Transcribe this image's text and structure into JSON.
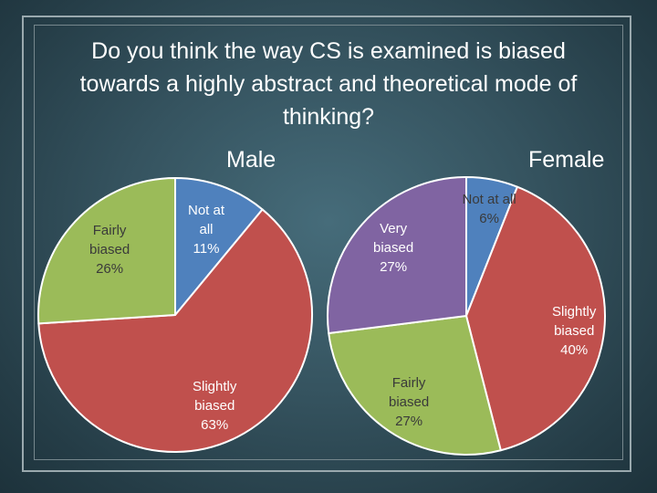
{
  "title": "Do you think the way CS is examined is biased towards a highly abstract and theoretical mode of thinking?",
  "chart_data": [
    {
      "type": "pie",
      "title": "Male",
      "slices": [
        {
          "label_lines": [
            "Not at",
            "all",
            "11%"
          ],
          "value": 11,
          "color": "#4f81bd",
          "text_color": "#ffffff"
        },
        {
          "label_lines": [
            "Slightly",
            "biased",
            "63%"
          ],
          "value": 63,
          "color": "#c0504d",
          "text_color": "#ffffff"
        },
        {
          "label_lines": [
            "Fairly",
            "biased",
            "26%"
          ],
          "value": 26,
          "color": "#9bbb59",
          "text_color": "#3a3a3a"
        }
      ]
    },
    {
      "type": "pie",
      "title": "Female",
      "slices": [
        {
          "label_lines": [
            "Not at all",
            "6%"
          ],
          "value": 6,
          "color": "#4f81bd",
          "text_color": "#3a3a3a"
        },
        {
          "label_lines": [
            "Slightly",
            "biased",
            "40%"
          ],
          "value": 40,
          "color": "#c0504d",
          "text_color": "#ffffff"
        },
        {
          "label_lines": [
            "Fairly",
            "biased",
            "27%"
          ],
          "value": 27,
          "color": "#9bbb59",
          "text_color": "#3a3a3a"
        },
        {
          "label_lines": [
            "Very",
            "biased",
            "27%"
          ],
          "value": 27,
          "color": "#8064a2",
          "text_color": "#ffffff"
        }
      ]
    }
  ]
}
